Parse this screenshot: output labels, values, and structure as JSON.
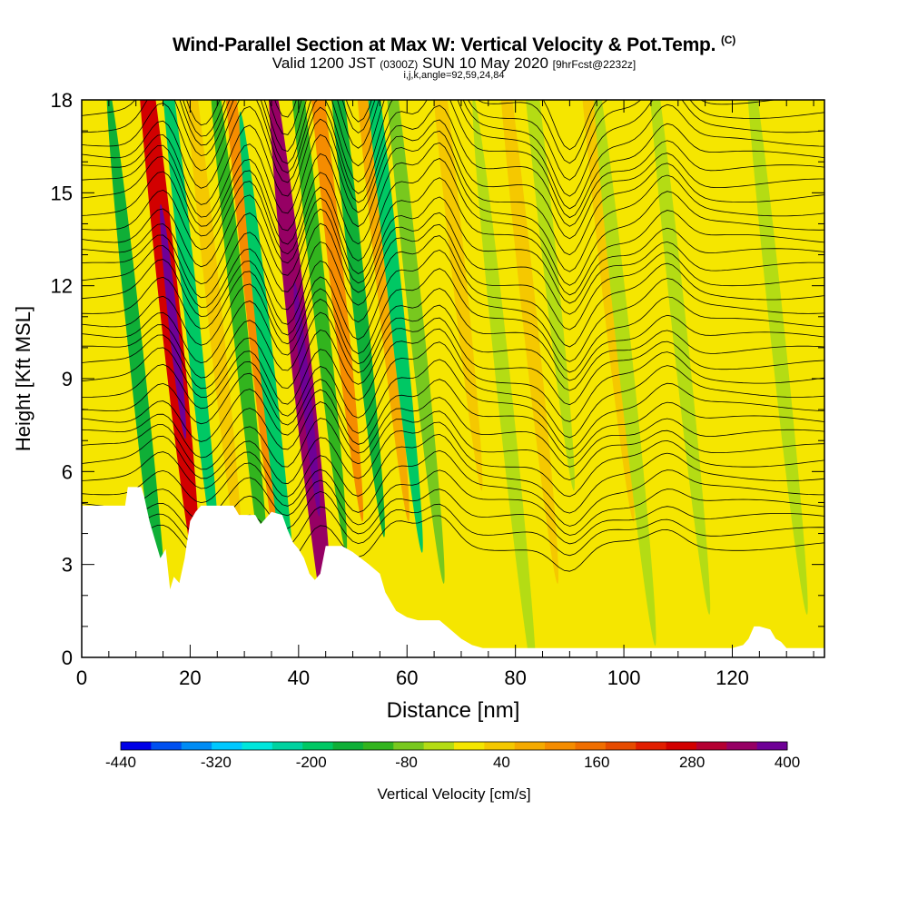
{
  "titles": {
    "main": "Wind-Parallel Section at Max W: Vertical Velocity & Pot.Temp.",
    "copyright": "(C)",
    "valid_prefix": "Valid 1200 JST",
    "valid_utc": "(0300Z)",
    "valid_date": "SUN 10 May 2020",
    "forecast": "[9hrFcst@2232z]",
    "indices": "i,j,k,angle=92,59,24,84"
  },
  "colors": {
    "frame": "#000000",
    "terrain": "#ffffff",
    "background_fill": "#f5e600",
    "contour": "#000000"
  },
  "chart_data": {
    "type": "heatmap",
    "xlabel": "Distance [nm]",
    "ylabel": "Height [Kft MSL]",
    "xlim": [
      0,
      137
    ],
    "ylim": [
      0,
      18
    ],
    "xticks": [
      0,
      20,
      40,
      60,
      80,
      100,
      120
    ],
    "yticks": [
      0,
      3,
      6,
      9,
      12,
      15,
      18
    ],
    "grid": false,
    "colorbar": {
      "label": "Vertical Velocity [cm/s]",
      "tick_labels": [
        "-440",
        "-320",
        "-200",
        "-80",
        "40",
        "160",
        "280",
        "400"
      ],
      "levels": [
        -440,
        -400,
        -360,
        -320,
        -280,
        -240,
        -200,
        -160,
        -120,
        -80,
        -40,
        0,
        40,
        80,
        120,
        160,
        200,
        240,
        280,
        320,
        360,
        400
      ],
      "colors": [
        "#0000e6",
        "#0050f0",
        "#008cf5",
        "#00c8ff",
        "#00e6dc",
        "#00d2a0",
        "#00c864",
        "#0faf37",
        "#32b41e",
        "#78c81e",
        "#b4dc14",
        "#f5e600",
        "#f5c800",
        "#f5aa00",
        "#f58c00",
        "#f06e00",
        "#e64b00",
        "#e11e00",
        "#d20000",
        "#b40032",
        "#960064",
        "#6e0096"
      ]
    },
    "terrain_kft": [
      [
        0,
        4.9
      ],
      [
        8,
        4.9
      ],
      [
        8.5,
        5.5
      ],
      [
        11,
        5.5
      ],
      [
        11.5,
        5.2
      ],
      [
        12.5,
        4.4
      ],
      [
        13.5,
        3.8
      ],
      [
        14.5,
        3.2
      ],
      [
        15.5,
        3.5
      ],
      [
        16.3,
        2.2
      ],
      [
        17,
        2.6
      ],
      [
        18,
        2.4
      ],
      [
        19,
        3.2
      ],
      [
        20,
        4.4
      ],
      [
        21,
        4.7
      ],
      [
        22,
        4.9
      ],
      [
        24,
        4.9
      ],
      [
        28,
        4.9
      ],
      [
        29,
        4.6
      ],
      [
        32,
        4.6
      ],
      [
        33,
        4.3
      ],
      [
        35,
        4.7
      ],
      [
        37,
        4.6
      ],
      [
        38,
        4.1
      ],
      [
        39,
        3.7
      ],
      [
        40,
        3.5
      ],
      [
        41,
        3.2
      ],
      [
        42,
        2.7
      ],
      [
        43,
        2.5
      ],
      [
        44,
        2.7
      ],
      [
        45,
        3.6
      ],
      [
        48,
        3.6
      ],
      [
        50,
        3.4
      ],
      [
        53,
        3.0
      ],
      [
        55,
        2.7
      ],
      [
        56,
        2.1
      ],
      [
        58,
        1.5
      ],
      [
        60,
        1.3
      ],
      [
        62,
        1.2
      ],
      [
        66,
        1.2
      ],
      [
        68,
        0.9
      ],
      [
        70,
        0.6
      ],
      [
        72,
        0.4
      ],
      [
        74,
        0.3
      ],
      [
        120,
        0.3
      ],
      [
        122,
        0.4
      ],
      [
        123,
        0.6
      ],
      [
        124,
        1.0
      ],
      [
        125,
        1.0
      ],
      [
        127,
        0.9
      ],
      [
        128,
        0.6
      ],
      [
        129,
        0.5
      ],
      [
        130,
        0.3
      ],
      [
        137,
        0.3
      ]
    ],
    "velocity_bands": [
      {
        "x": 10.5,
        "y": 9.0,
        "value": -160
      },
      {
        "x": 15.8,
        "y": 12.0,
        "value": 280
      },
      {
        "x": 19.7,
        "y": 12.0,
        "value": -200
      },
      {
        "x": 24.0,
        "y": 12.0,
        "value": 40
      },
      {
        "x": 29.0,
        "y": 11.0,
        "value": -120
      },
      {
        "x": 31.5,
        "y": 11.5,
        "value": 120
      },
      {
        "x": 35.0,
        "y": 8.0,
        "value": -200
      },
      {
        "x": 40.5,
        "y": 9.5,
        "value": 360
      },
      {
        "x": 43.0,
        "y": 13.0,
        "value": -120
      },
      {
        "x": 46.0,
        "y": 14.0,
        "value": 120
      },
      {
        "x": 50.0,
        "y": 13.5,
        "value": -160
      },
      {
        "x": 54.5,
        "y": 14.0,
        "value": 80
      },
      {
        "x": 57.0,
        "y": 13.0,
        "value": -200
      },
      {
        "x": 61.0,
        "y": 12.0,
        "value": -80
      },
      {
        "x": 68.0,
        "y": 15.0,
        "value": 40
      },
      {
        "x": 78.0,
        "y": 8.5,
        "value": -40
      },
      {
        "x": 82.0,
        "y": 12.0,
        "value": 40
      },
      {
        "x": 85.0,
        "y": 15.0,
        "value": -40
      },
      {
        "x": 96.0,
        "y": 14.0,
        "value": 40
      },
      {
        "x": 100.0,
        "y": 10.0,
        "value": -40
      },
      {
        "x": 110.0,
        "y": 11.0,
        "value": -40
      },
      {
        "x": 128.0,
        "y": 11.0,
        "value": -40
      }
    ]
  }
}
